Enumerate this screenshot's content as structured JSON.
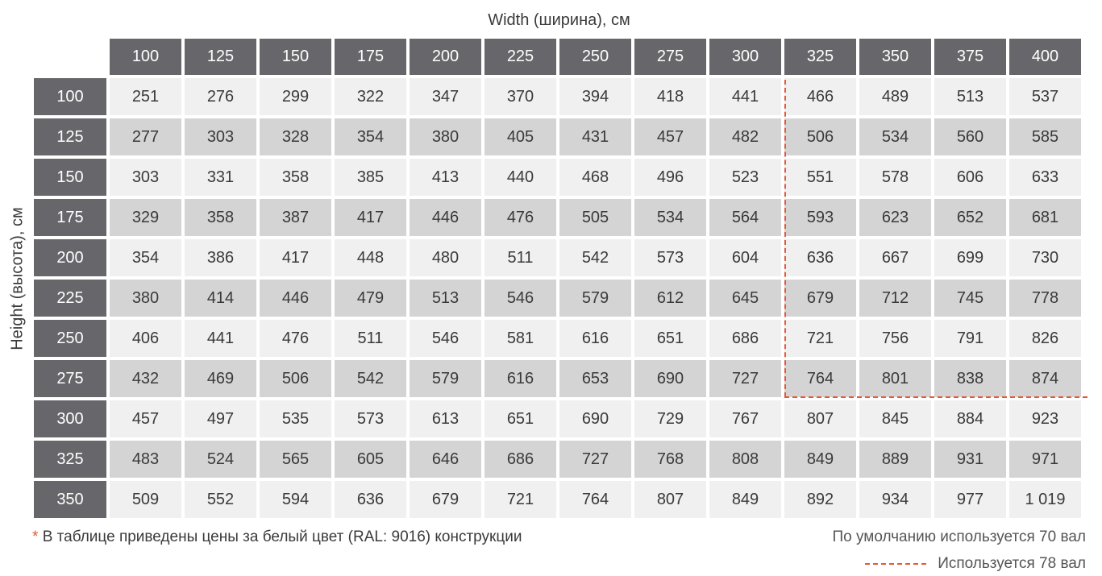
{
  "table": {
    "width_title": "Width (ширина), см",
    "height_title": "Height (высота), см",
    "widths": [
      "100",
      "125",
      "150",
      "175",
      "200",
      "225",
      "250",
      "275",
      "300",
      "325",
      "350",
      "375",
      "400"
    ],
    "rows": [
      {
        "height": "100",
        "values": [
          "251",
          "276",
          "299",
          "322",
          "347",
          "370",
          "394",
          "418",
          "441",
          "466",
          "489",
          "513",
          "537"
        ]
      },
      {
        "height": "125",
        "values": [
          "277",
          "303",
          "328",
          "354",
          "380",
          "405",
          "431",
          "457",
          "482",
          "506",
          "534",
          "560",
          "585"
        ]
      },
      {
        "height": "150",
        "values": [
          "303",
          "331",
          "358",
          "385",
          "413",
          "440",
          "468",
          "496",
          "523",
          "551",
          "578",
          "606",
          "633"
        ]
      },
      {
        "height": "175",
        "values": [
          "329",
          "358",
          "387",
          "417",
          "446",
          "476",
          "505",
          "534",
          "564",
          "593",
          "623",
          "652",
          "681"
        ]
      },
      {
        "height": "200",
        "values": [
          "354",
          "386",
          "417",
          "448",
          "480",
          "511",
          "542",
          "573",
          "604",
          "636",
          "667",
          "699",
          "730"
        ]
      },
      {
        "height": "225",
        "values": [
          "380",
          "414",
          "446",
          "479",
          "513",
          "546",
          "579",
          "612",
          "645",
          "679",
          "712",
          "745",
          "778"
        ]
      },
      {
        "height": "250",
        "values": [
          "406",
          "441",
          "476",
          "511",
          "546",
          "581",
          "616",
          "651",
          "686",
          "721",
          "756",
          "791",
          "826"
        ]
      },
      {
        "height": "275",
        "values": [
          "432",
          "469",
          "506",
          "542",
          "579",
          "616",
          "653",
          "690",
          "727",
          "764",
          "801",
          "838",
          "874"
        ]
      },
      {
        "height": "300",
        "values": [
          "457",
          "497",
          "535",
          "573",
          "613",
          "651",
          "690",
          "729",
          "767",
          "807",
          "845",
          "884",
          "923"
        ]
      },
      {
        "height": "325",
        "values": [
          "483",
          "524",
          "565",
          "605",
          "646",
          "686",
          "727",
          "768",
          "808",
          "849",
          "889",
          "931",
          "971"
        ]
      },
      {
        "height": "350",
        "values": [
          "509",
          "552",
          "594",
          "636",
          "679",
          "721",
          "764",
          "807",
          "849",
          "892",
          "934",
          "977",
          "1 019"
        ]
      }
    ]
  },
  "footnote": {
    "star": "*",
    "text": "В таблице приведены цены за белый цвет (RAL: 9016) конструкции"
  },
  "legend": {
    "default_text": "По умолчанию используется 70 вал",
    "dashed_text": "Используется 78 вал"
  },
  "colors": {
    "header_bg": "#67676b",
    "row_light": "#f0f0f0",
    "row_dark": "#d4d4d4",
    "accent": "#e05a3a"
  }
}
